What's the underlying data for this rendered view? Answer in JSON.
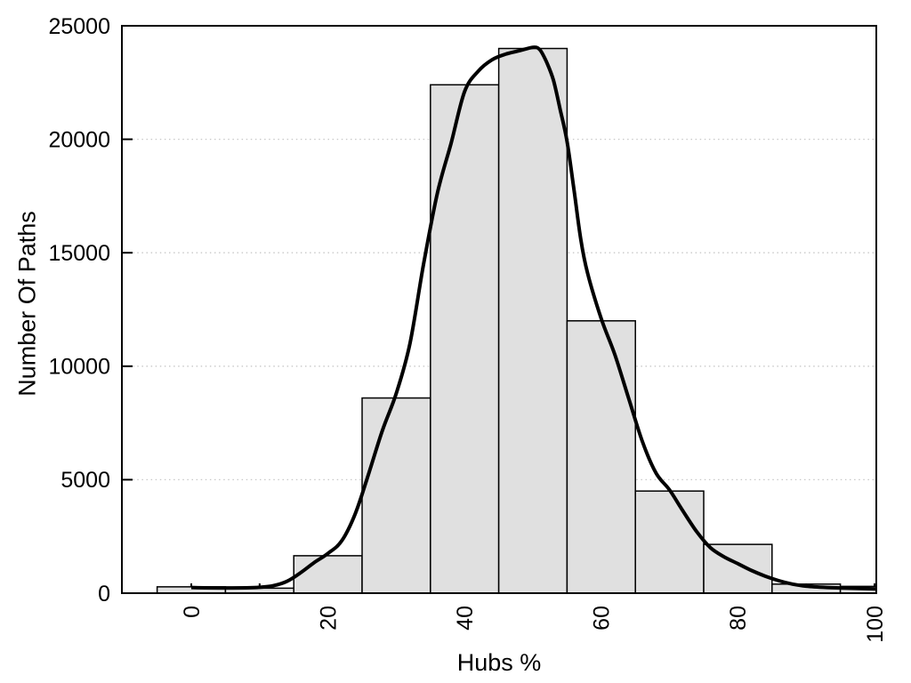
{
  "figure": {
    "title": "",
    "background_color": "#ffffff"
  },
  "chart_data": {
    "type": "bar",
    "subtype": "histogram_with_density_curve",
    "title": "",
    "xlabel": "Hubs %",
    "ylabel": "Number Of Paths",
    "xlim": [
      -10.16,
      100.26
    ],
    "ylim": [
      0,
      25000
    ],
    "x_ticks": [
      0,
      20,
      40,
      60,
      80,
      100
    ],
    "x_tick_labels": [
      "0",
      "20",
      "40",
      "60",
      "80",
      "100"
    ],
    "x_minor_ticks": [
      0,
      10,
      20,
      30,
      40,
      50,
      60,
      70,
      80,
      90,
      100
    ],
    "x_tick_label_rotation_deg": -90,
    "y_ticks": [
      0,
      5000,
      10000,
      15000,
      20000,
      25000
    ],
    "y_tick_labels": [
      "0",
      "5000",
      "10000",
      "15000",
      "20000",
      "25000"
    ],
    "grid": "horizontal dotted lines at y ticks",
    "legend": "none",
    "bin_width": 10,
    "bin_centers": [
      0,
      10,
      20,
      30,
      40,
      50,
      60,
      70,
      80,
      90,
      100
    ],
    "bin_counts": [
      280,
      220,
      1650,
      8600,
      22400,
      24000,
      12000,
      4500,
      2150,
      400,
      300
    ],
    "series": [
      {
        "name": "paths-histogram",
        "type": "bar",
        "values": [
          280,
          220,
          1650,
          8600,
          22400,
          24000,
          12000,
          4500,
          2150,
          400,
          300
        ]
      },
      {
        "name": "density-curve",
        "type": "line",
        "points": [
          [
            0,
            250
          ],
          [
            2,
            235
          ],
          [
            5,
            230
          ],
          [
            8,
            235
          ],
          [
            10,
            260
          ],
          [
            12,
            330
          ],
          [
            14,
            520
          ],
          [
            16,
            900
          ],
          [
            18,
            1350
          ],
          [
            20,
            1750
          ],
          [
            22,
            2300
          ],
          [
            24,
            3500
          ],
          [
            26,
            5300
          ],
          [
            28,
            7200
          ],
          [
            30,
            8800
          ],
          [
            32,
            11000
          ],
          [
            34,
            14500
          ],
          [
            36,
            17600
          ],
          [
            38,
            19800
          ],
          [
            40,
            22100
          ],
          [
            42,
            23000
          ],
          [
            44,
            23500
          ],
          [
            46,
            23750
          ],
          [
            48,
            23900
          ],
          [
            50,
            24050
          ],
          [
            51,
            23950
          ],
          [
            52,
            23400
          ],
          [
            53,
            22600
          ],
          [
            54,
            21300
          ],
          [
            55,
            19900
          ],
          [
            56,
            17800
          ],
          [
            57,
            15600
          ],
          [
            58,
            14100
          ],
          [
            60,
            12100
          ],
          [
            62,
            10500
          ],
          [
            64,
            8600
          ],
          [
            66,
            6700
          ],
          [
            68,
            5300
          ],
          [
            70,
            4550
          ],
          [
            72,
            3600
          ],
          [
            74,
            2700
          ],
          [
            76,
            2000
          ],
          [
            78,
            1600
          ],
          [
            80,
            1300
          ],
          [
            82,
            1000
          ],
          [
            84,
            750
          ],
          [
            86,
            550
          ],
          [
            88,
            400
          ],
          [
            90,
            310
          ],
          [
            93,
            250
          ],
          [
            96,
            220
          ],
          [
            100.3,
            185
          ]
        ]
      }
    ],
    "colors": {
      "bar_fill": "#e0e0e0",
      "bar_border": "#000000",
      "curve": "#000000",
      "frame": "#000000",
      "grid": "#c8c8c8",
      "text": "#000000"
    }
  }
}
